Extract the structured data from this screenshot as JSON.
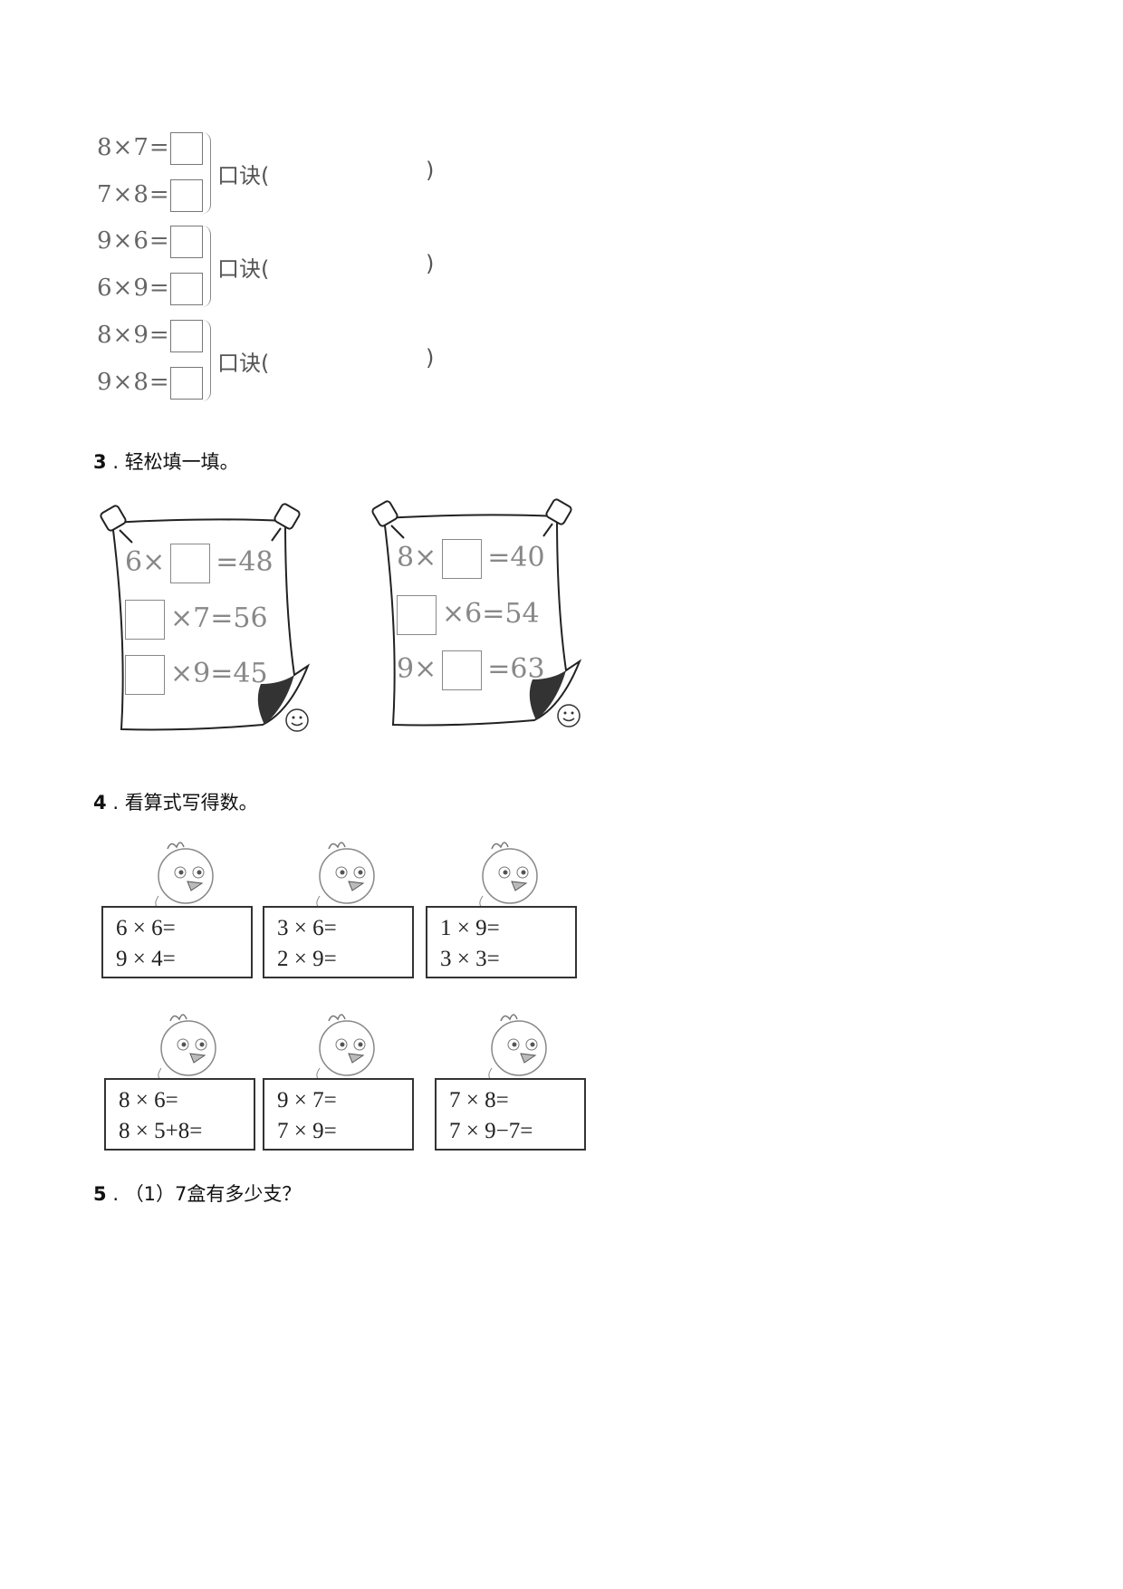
{
  "section2_groups": [
    {
      "eq1": "8×7=",
      "eq2": "7×8=",
      "label": "口诀(",
      "close": ")"
    },
    {
      "eq1": "9×6=",
      "eq2": "6×9=",
      "label": "口诀(",
      "close": ")"
    },
    {
      "eq1": "8×9=",
      "eq2": "9×8=",
      "label": "口诀(",
      "close": ")"
    }
  ],
  "q3": {
    "number": "3",
    "sep": ".",
    "title": "轻松填一填。",
    "posters": [
      {
        "rows": [
          {
            "pre": "6×",
            "post": "=48"
          },
          {
            "pre": "",
            "post": "×7=56"
          },
          {
            "pre": "",
            "post": "×9=45"
          }
        ]
      },
      {
        "rows": [
          {
            "pre": "8×",
            "post": "=40"
          },
          {
            "pre": "",
            "post": "×6=54"
          },
          {
            "pre": "9×",
            "post": "=63"
          }
        ]
      }
    ]
  },
  "q4": {
    "number": "4",
    "sep": ".",
    "title": "看算式写得数。",
    "cards": [
      [
        "6 × 6=",
        "9 × 4="
      ],
      [
        "3 × 6=",
        "2 × 9="
      ],
      [
        "1 × 9=",
        "3 × 3="
      ],
      [
        "8 × 6=",
        "8 × 5+8="
      ],
      [
        "9 × 7=",
        "7 × 9="
      ],
      [
        "7 × 8=",
        "7 × 9−7="
      ]
    ]
  },
  "q5": {
    "number": "5",
    "sep": ".",
    "title": "（1）7盒有多少支？"
  }
}
